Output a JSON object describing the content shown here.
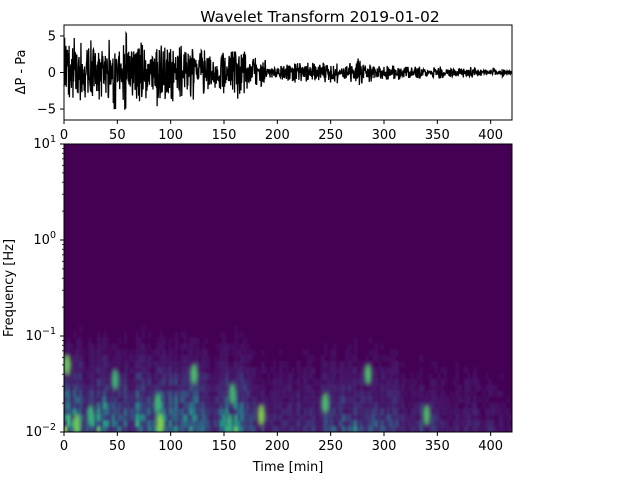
{
  "chart_data": [
    {
      "type": "line",
      "title": "Wavelet Transform 2019-01-02",
      "xlabel": "",
      "ylabel": "ΔP - Pa",
      "xlim": [
        0,
        420
      ],
      "ylim": [
        -6.5,
        6.5
      ],
      "x_ticks": [
        0,
        50,
        100,
        150,
        200,
        250,
        300,
        350,
        400
      ],
      "x_tick_labels": [
        "0",
        "50",
        "100",
        "150",
        "200",
        "250",
        "300",
        "350",
        "400"
      ],
      "y_ticks": [
        5,
        0,
        -5
      ],
      "y_tick_labels": [
        "5",
        "0",
        "−5"
      ],
      "line_color": "#000000",
      "grid": false,
      "series": [
        {
          "x": [
            0,
            20,
            40,
            60,
            80,
            100,
            120,
            140,
            160,
            180,
            200,
            220,
            240,
            260,
            280,
            300,
            320,
            340,
            360,
            380,
            400,
            420
          ],
          "envelope_amplitude": [
            5.5,
            4.5,
            4.5,
            5.5,
            4.5,
            4.0,
            4.0,
            2.5,
            4.0,
            2.0,
            1.2,
            1.4,
            1.3,
            1.5,
            2.0,
            1.1,
            0.9,
            0.9,
            0.7,
            0.7,
            0.6,
            0.5
          ]
        }
      ]
    },
    {
      "type": "heatmap",
      "title": "",
      "xlabel": "Time  [min]",
      "ylabel": "Frequency [Hz]",
      "xlim": [
        0,
        420
      ],
      "ylim": [
        0.01,
        10
      ],
      "y_scale": "log",
      "colormap": "viridis",
      "background_color": "#440154",
      "x_ticks": [
        0,
        50,
        100,
        150,
        200,
        250,
        300,
        350,
        400
      ],
      "x_tick_labels": [
        "0",
        "50",
        "100",
        "150",
        "200",
        "250",
        "300",
        "350",
        "400"
      ],
      "y_ticks": [
        0.01,
        0.1,
        1,
        10
      ],
      "y_tick_labels": [
        {
          "base": "10",
          "exp": "−2"
        },
        {
          "base": "10",
          "exp": "−1"
        },
        {
          "base": "10",
          "exp": "0"
        },
        {
          "base": "10",
          "exp": "1"
        }
      ],
      "time_minutes": [
        0,
        20,
        40,
        60,
        80,
        100,
        120,
        140,
        160,
        180,
        200,
        220,
        240,
        260,
        280,
        300,
        320,
        340,
        360,
        380,
        400,
        420
      ],
      "power_at_0_01Hz": [
        0.8,
        0.6,
        0.7,
        0.65,
        0.7,
        0.6,
        0.7,
        0.35,
        0.9,
        0.4,
        0.3,
        0.35,
        0.35,
        0.45,
        0.45,
        0.4,
        0.3,
        0.3,
        0.2,
        0.25,
        0.2,
        0.15
      ],
      "hotspots": [
        {
          "t": 3,
          "f": 0.05
        },
        {
          "t": 12,
          "f": 0.012
        },
        {
          "t": 25,
          "f": 0.015
        },
        {
          "t": 48,
          "f": 0.035
        },
        {
          "t": 88,
          "f": 0.02
        },
        {
          "t": 90,
          "f": 0.012
        },
        {
          "t": 122,
          "f": 0.04
        },
        {
          "t": 155,
          "f": 0.012
        },
        {
          "t": 158,
          "f": 0.025
        },
        {
          "t": 185,
          "f": 0.015
        },
        {
          "t": 245,
          "f": 0.02
        },
        {
          "t": 285,
          "f": 0.04
        },
        {
          "t": 340,
          "f": 0.015
        }
      ]
    }
  ]
}
